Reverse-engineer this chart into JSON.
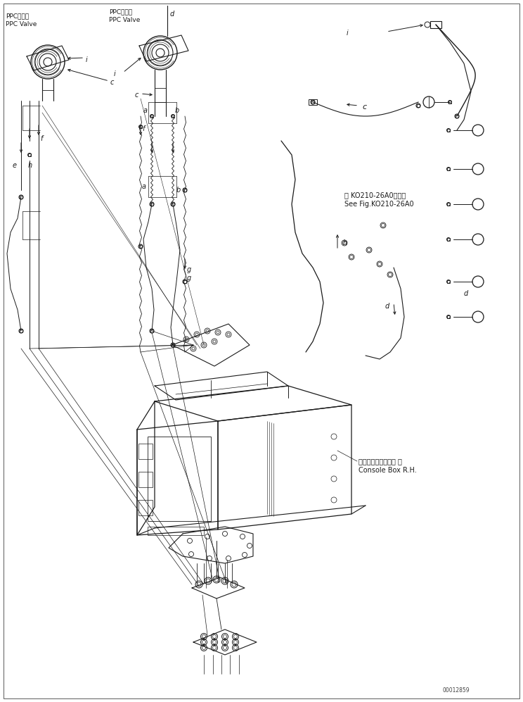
{
  "background_color": "#ffffff",
  "figsize": [
    7.44,
    9.97
  ],
  "dpi": 100,
  "line_color": "#1a1a1a",
  "line_width": 0.7,
  "labels": {
    "ppc_valve_left_jp": "PPCバルブ",
    "ppc_valve_left_en": "PPC Valve",
    "ppc_valve_top_jp": "PPCバルブ",
    "ppc_valve_top_en": "PPC Valve",
    "console_box_jp": "コンソールボックス 右",
    "console_box_en": "Console Box R.H.",
    "see_fig_jp": "第 KO210-26A0図参照",
    "see_fig_en": "See Fig.KO210-26A0",
    "part_number": "00012859"
  },
  "font_size": 7,
  "font_size_small": 5.5,
  "font_size_label": 8
}
